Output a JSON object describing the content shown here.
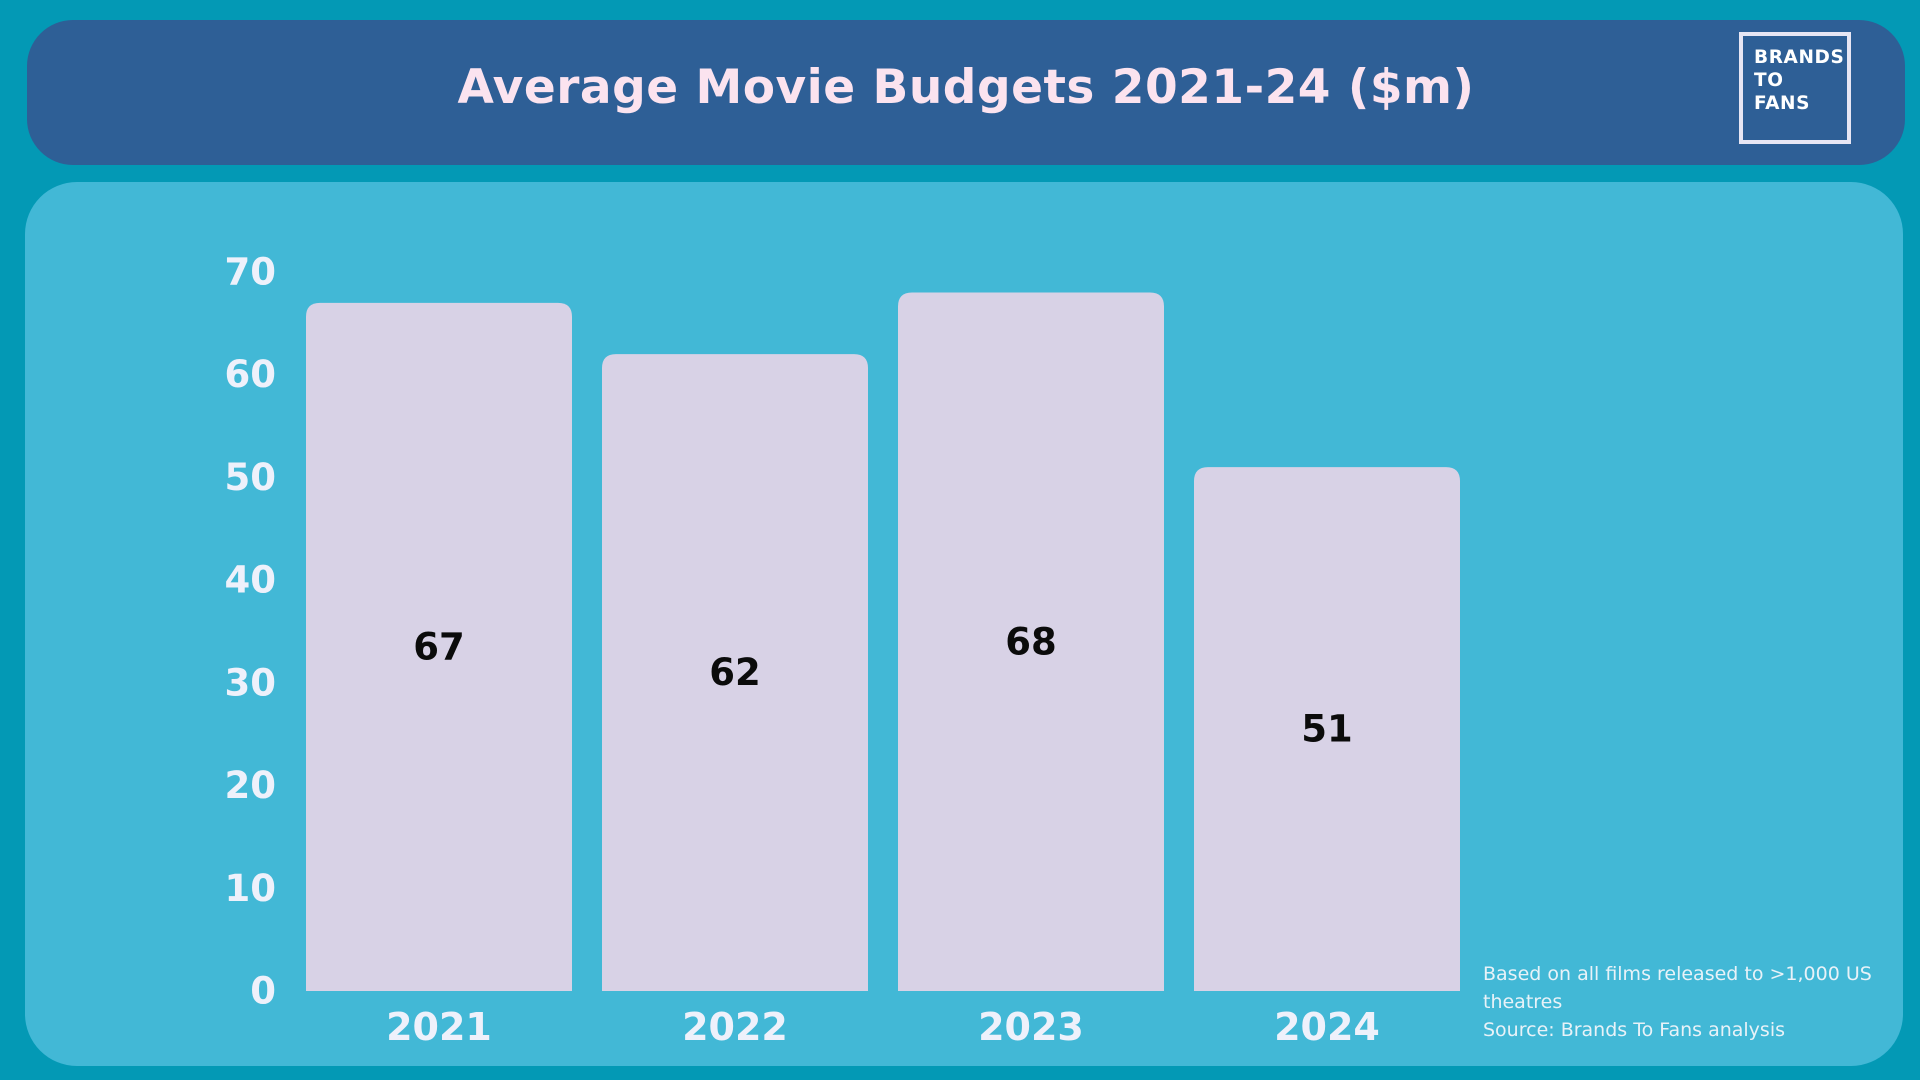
{
  "header": {
    "title": "Average Movie Budgets 2021-24 ($m)",
    "logo_lines": [
      "BRANDS",
      "TO",
      "FANS"
    ]
  },
  "footnote": {
    "line1": "Based on all films released to >1,000 US theatres",
    "line2": "Source: Brands To Fans analysis"
  },
  "colors": {
    "background": "#0399b5",
    "header": "#2e5f96",
    "panel": "#42b8d6",
    "bar": "#d8d2e6",
    "title_text": "#fbe3ef"
  },
  "chart_data": {
    "type": "bar",
    "title": "Average Movie Budgets 2021-24 ($m)",
    "categories": [
      "2021",
      "2022",
      "2023",
      "2024"
    ],
    "values": [
      67,
      62,
      68,
      51
    ],
    "ylim": [
      0,
      70
    ],
    "yticks": [
      0,
      10,
      20,
      30,
      40,
      50,
      60,
      70
    ],
    "xlabel": "",
    "ylabel": "",
    "grid": false,
    "data_labels": true
  }
}
